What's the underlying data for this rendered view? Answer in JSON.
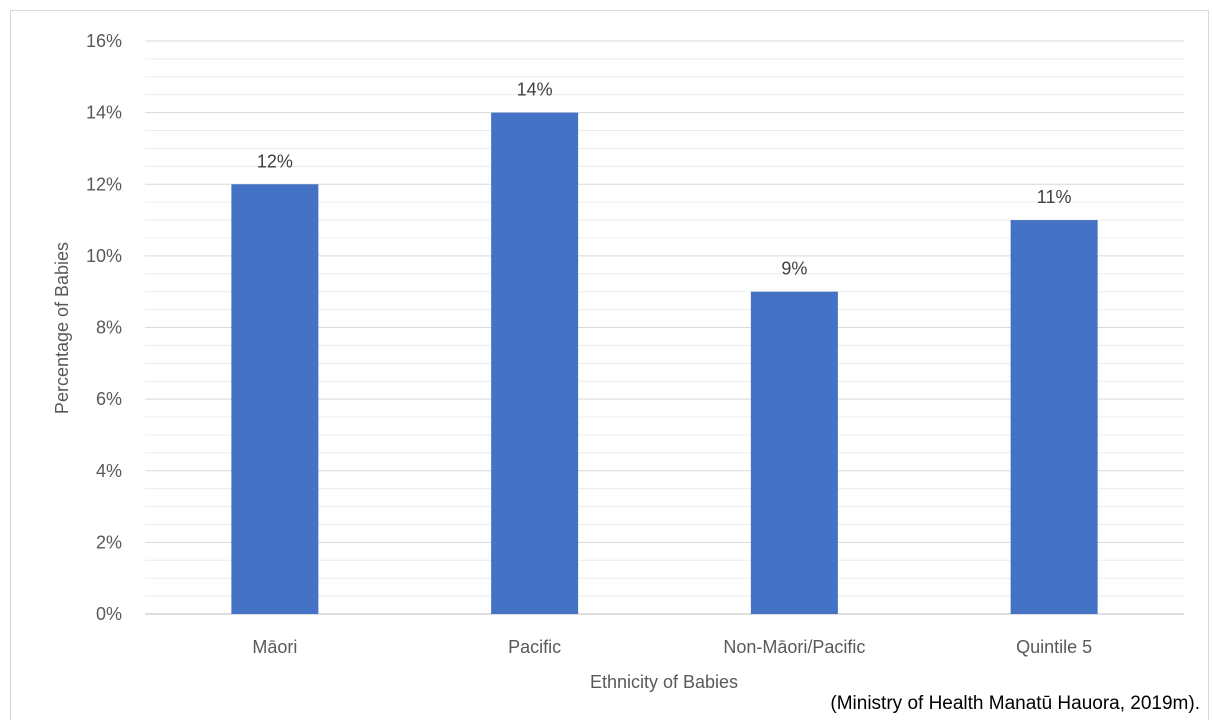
{
  "chart_data": {
    "type": "bar",
    "categories": [
      "Māori",
      "Pacific",
      "Non-Māori/Pacific",
      "Quintile 5"
    ],
    "values": [
      12,
      14,
      9,
      11
    ],
    "data_labels": [
      "12%",
      "14%",
      "9%",
      "11%"
    ],
    "xlabel": "Ethnicity of Babies",
    "ylabel": "Percentage of Babies",
    "ylim": [
      0,
      16
    ],
    "y_ticks": [
      0,
      2,
      4,
      6,
      8,
      10,
      12,
      14,
      16
    ],
    "y_tick_labels": [
      "0%",
      "2%",
      "4%",
      "6%",
      "8%",
      "10%",
      "12%",
      "14%",
      "16%"
    ],
    "grid": "horizontal major and minor",
    "legend": "none",
    "bar_color": "#4472c4",
    "gridline_color": "#d9d9d9"
  },
  "source_note": "(Ministry of Health Manatū Hauora, 2019m)."
}
